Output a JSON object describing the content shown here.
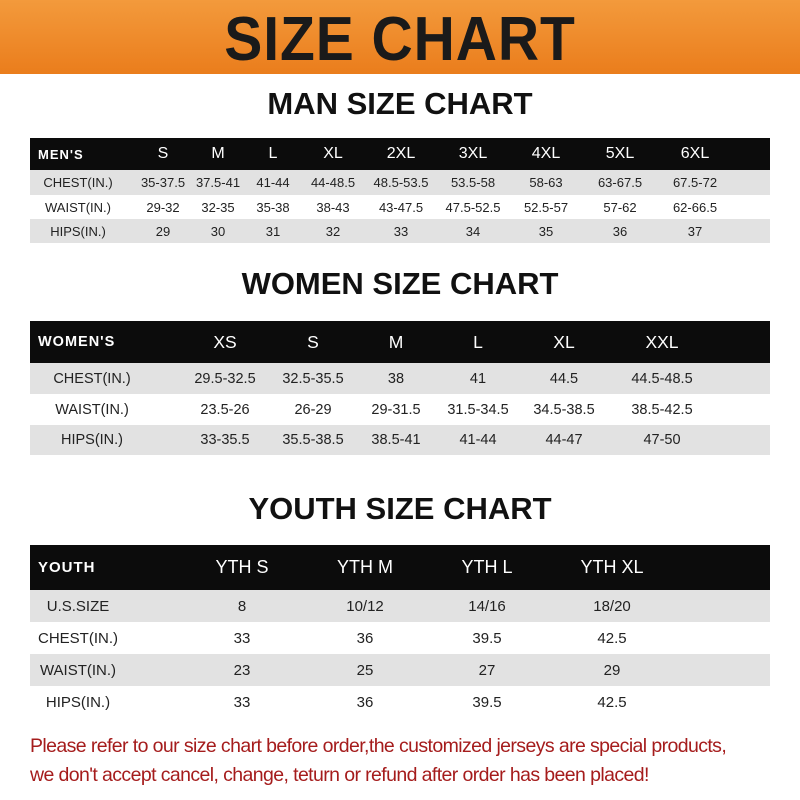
{
  "banner": {
    "title": "SIZE CHART",
    "color": "#ee8a2a"
  },
  "men": {
    "title": "MAN SIZE CHART",
    "headers": [
      "MEN'S",
      "S",
      "M",
      "L",
      "XL",
      "2XL",
      "3XL",
      "4XL",
      "5XL",
      "6XL"
    ],
    "rows": [
      [
        "CHEST(IN.)",
        "35-37.5",
        "37.5-41",
        "41-44",
        "44-48.5",
        "48.5-53.5",
        "53.5-58",
        "58-63",
        "63-67.5",
        "67.5-72"
      ],
      [
        "WAIST(IN.)",
        "29-32",
        "32-35",
        "35-38",
        "38-43",
        "43-47.5",
        "47.5-52.5",
        "52.5-57",
        "57-62",
        "62-66.5"
      ],
      [
        "HIPS(IN.)",
        "29",
        "30",
        "31",
        "32",
        "33",
        "34",
        "35",
        "36",
        "37"
      ]
    ]
  },
  "women": {
    "title": "WOMEN SIZE CHART",
    "headers": [
      "WOMEN'S",
      "XS",
      "S",
      "M",
      "L",
      "XL",
      "XXL"
    ],
    "rows": [
      [
        "CHEST(IN.)",
        "29.5-32.5",
        "32.5-35.5",
        "38",
        "41",
        "44.5",
        "44.5-48.5"
      ],
      [
        "WAIST(IN.)",
        "23.5-26",
        "26-29",
        "29-31.5",
        "31.5-34.5",
        "34.5-38.5",
        "38.5-42.5"
      ],
      [
        "HIPS(IN.)",
        "33-35.5",
        "35.5-38.5",
        "38.5-41",
        "41-44",
        "44-47",
        "47-50"
      ]
    ]
  },
  "youth": {
    "title": "YOUTH SIZE CHART",
    "headers": [
      "YOUTH",
      "YTH S",
      "YTH M",
      "YTH L",
      "YTH XL"
    ],
    "rows": [
      [
        "U.S.SIZE",
        "8",
        "10/12",
        "14/16",
        "18/20"
      ],
      [
        "CHEST(IN.)",
        "33",
        "36",
        "39.5",
        "42.5"
      ],
      [
        "WAIST(IN.)",
        "23",
        "25",
        "27",
        "29"
      ],
      [
        "HIPS(IN.)",
        "33",
        "36",
        "39.5",
        "42.5"
      ]
    ]
  },
  "notice": {
    "line1": "Please refer to our size chart before order,the customized jerseys are special products,",
    "line2": "we don't accept cancel, change, teturn or refund after order has been placed!",
    "color": "#a51c1c"
  }
}
